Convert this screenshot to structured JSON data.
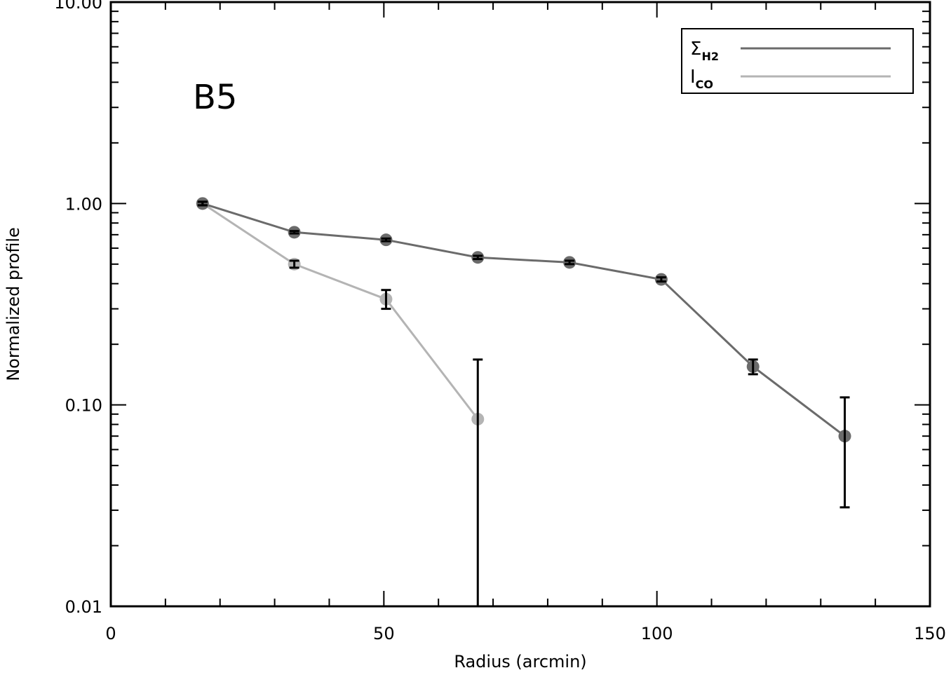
{
  "chart_data": {
    "type": "line",
    "title": "",
    "panel_label": "B5",
    "xlabel": "Radius (arcmin)",
    "ylabel": "Normalized profile",
    "xlim": [
      0,
      150
    ],
    "ylim": [
      0.01,
      10
    ],
    "yscale": "log",
    "x_ticks": [
      0,
      50,
      100,
      150
    ],
    "x_tick_labels": [
      "0",
      "50",
      "100",
      "150"
    ],
    "y_ticks": [
      0.01,
      0.1,
      1,
      10
    ],
    "y_tick_labels": [
      "0.01",
      "0.10",
      "1.00",
      "10.00"
    ],
    "grid": false,
    "legend_position": "top-right",
    "legend": [
      {
        "main": "Σ",
        "sub": "H2",
        "color": "#6b6b6b"
      },
      {
        "main": "I",
        "sub": "CO",
        "color": "#b4b4b4"
      }
    ],
    "series": [
      {
        "color": "#6b6b6b",
        "x": [
          16.8,
          33.6,
          50.4,
          67.2,
          84.0,
          100.8,
          117.6,
          134.4
        ],
        "y": [
          1.0,
          0.72,
          0.66,
          0.54,
          0.51,
          0.42,
          0.155,
          0.07
        ],
        "err_low": [
          0.98,
          0.71,
          0.65,
          0.53,
          0.5,
          0.41,
          0.142,
          0.031
        ],
        "err_high": [
          1.02,
          0.73,
          0.67,
          0.55,
          0.52,
          0.43,
          0.168,
          0.109
        ]
      },
      {
        "color": "#b4b4b4",
        "x": [
          16.8,
          33.6,
          50.4,
          67.2
        ],
        "y": [
          1.0,
          0.5,
          0.335,
          0.085
        ],
        "err_low": [
          0.98,
          0.48,
          0.3,
          0.01
        ],
        "err_high": [
          1.02,
          0.52,
          0.372,
          0.168
        ]
      }
    ]
  }
}
